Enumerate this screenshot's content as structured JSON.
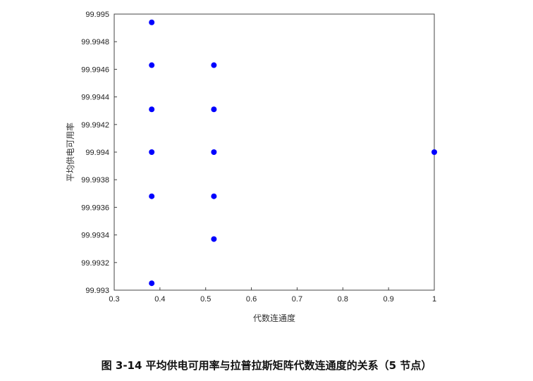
{
  "chart_data": {
    "type": "scatter",
    "title": "",
    "xlabel": "代数连通度",
    "ylabel": "平均供电可用率",
    "xlim": [
      0.3,
      1.0
    ],
    "ylim": [
      99.993,
      99.995
    ],
    "xticks": [
      0.3,
      0.4,
      0.5,
      0.6,
      0.7,
      0.8,
      0.9,
      1.0
    ],
    "xtick_labels": [
      "0.3",
      "0.4",
      "0.5",
      "0.6",
      "0.7",
      "0.8",
      "0.9",
      "1"
    ],
    "yticks": [
      99.993,
      99.9932,
      99.9934,
      99.9936,
      99.9938,
      99.994,
      99.9942,
      99.9944,
      99.9946,
      99.9948,
      99.995
    ],
    "ytick_labels": [
      "99.993",
      "99.9932",
      "99.9934",
      "99.9936",
      "99.9938",
      "99.994",
      "99.9942",
      "99.9944",
      "99.9946",
      "99.9948",
      "99.995"
    ],
    "grid": false,
    "marker_color": "#0000ff",
    "points": [
      {
        "x": 0.382,
        "y": 99.99494
      },
      {
        "x": 0.382,
        "y": 99.99463
      },
      {
        "x": 0.382,
        "y": 99.99431
      },
      {
        "x": 0.382,
        "y": 99.994
      },
      {
        "x": 0.382,
        "y": 99.99368
      },
      {
        "x": 0.382,
        "y": 99.99305
      },
      {
        "x": 0.518,
        "y": 99.99463
      },
      {
        "x": 0.518,
        "y": 99.99431
      },
      {
        "x": 0.518,
        "y": 99.994
      },
      {
        "x": 0.518,
        "y": 99.99368
      },
      {
        "x": 0.518,
        "y": 99.99337
      },
      {
        "x": 1.0,
        "y": 99.994
      }
    ]
  },
  "caption": "图 3-14  平均供电可用率与拉普拉斯矩阵代数连通度的关系（5 节点）"
}
